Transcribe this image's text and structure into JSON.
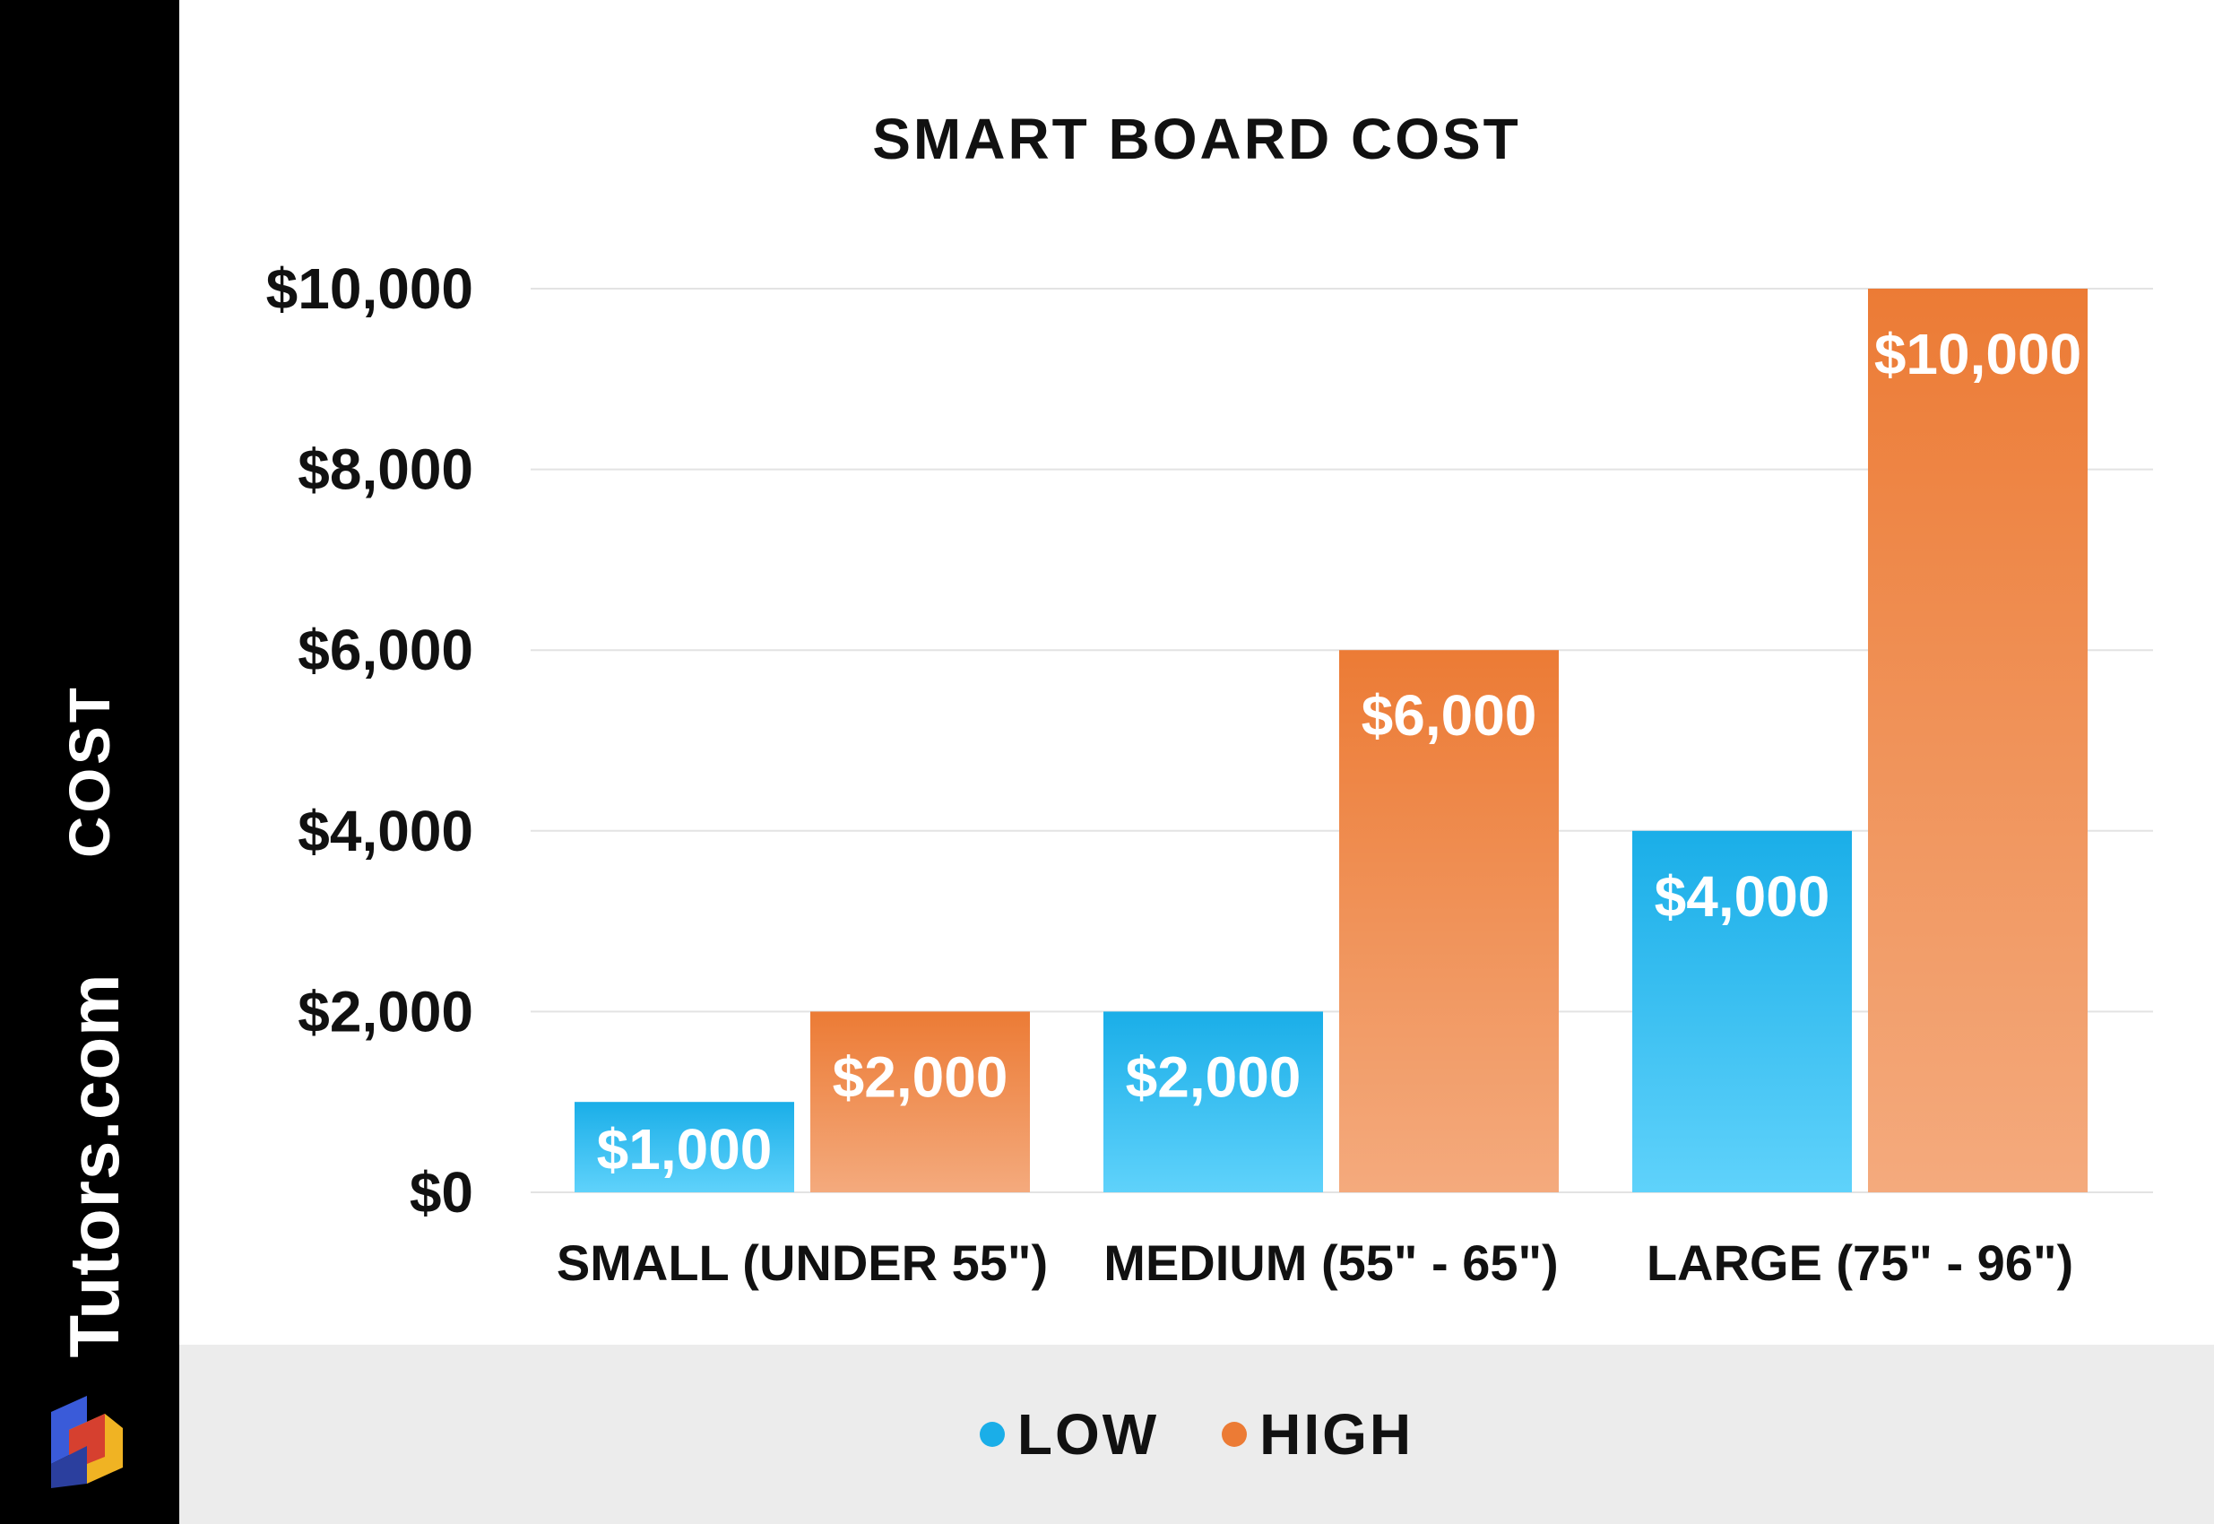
{
  "brand": {
    "name": "Tutors.com"
  },
  "chart_data": {
    "type": "bar",
    "title": "SMART BOARD COST",
    "xlabel": "",
    "ylabel": "COST",
    "ylim": [
      0,
      10000
    ],
    "yticks": [
      0,
      2000,
      4000,
      6000,
      8000,
      10000
    ],
    "ytick_labels": [
      "$0",
      "$2,000",
      "$4,000",
      "$6,000",
      "$8,000",
      "$10,000"
    ],
    "categories": [
      "SMALL (UNDER 55\")",
      "MEDIUM (55\" - 65\")",
      "LARGE (75\" - 96\")"
    ],
    "series": [
      {
        "name": "LOW",
        "values": [
          1000,
          2000,
          4000
        ],
        "labels": [
          "$1,000",
          "$2,000",
          "$4,000"
        ],
        "color": "#1aaee8",
        "color_light": "#5fd2fb"
      },
      {
        "name": "HIGH",
        "values": [
          2000,
          6000,
          10000
        ],
        "labels": [
          "$2,000",
          "$6,000",
          "$10,000"
        ],
        "color": "#ec7b35",
        "color_light": "#f4aa7d"
      }
    ],
    "grid": true,
    "legend": "bottom-center"
  }
}
